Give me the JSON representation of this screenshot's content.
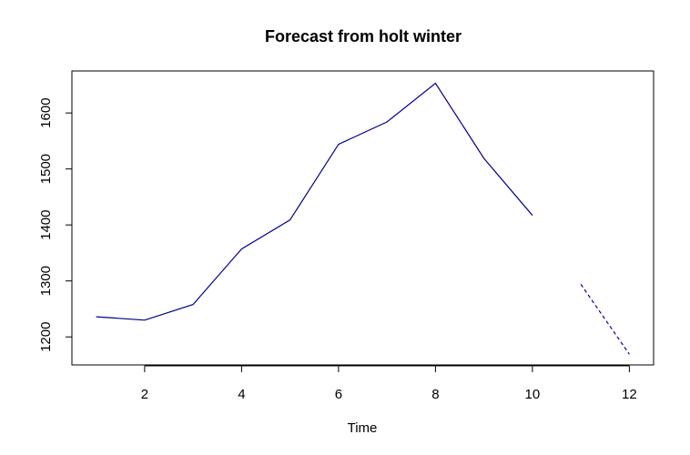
{
  "chart_data": {
    "type": "line",
    "title": "Forecast from holt winter",
    "xlabel": "Time",
    "ylabel": "",
    "xlim": [
      0.5,
      12.5
    ],
    "ylim": [
      1150,
      1675
    ],
    "xticks": [
      2,
      4,
      6,
      8,
      10,
      12
    ],
    "yticks": [
      1200,
      1300,
      1400,
      1500,
      1600
    ],
    "grid": false,
    "legend": "none",
    "series": [
      {
        "style": "solid",
        "color": "#00008B",
        "x": [
          1,
          2,
          3,
          4,
          5,
          6,
          7,
          8,
          9,
          10
        ],
        "values": [
          1236,
          1230,
          1258,
          1357,
          1409,
          1544,
          1584,
          1653,
          1519,
          1417
        ]
      },
      {
        "style": "dashed",
        "color": "#00008B",
        "x": [
          11,
          12
        ],
        "values": [
          1294,
          1169
        ]
      }
    ]
  }
}
